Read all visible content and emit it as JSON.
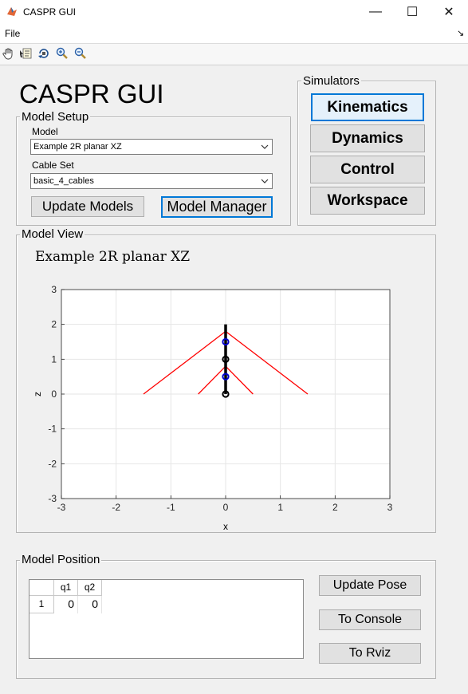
{
  "window": {
    "title": "CASPR GUI",
    "minimize": "—",
    "maximize": "☐",
    "close": "✕"
  },
  "menu": {
    "file": "File",
    "dock": "↘"
  },
  "toolbar": {
    "icons": [
      "pan-hand-icon",
      "data-cursor-icon",
      "rotate-3d-icon",
      "zoom-in-icon",
      "zoom-out-icon"
    ]
  },
  "app_title": "CASPR GUI",
  "model_setup": {
    "label": "Model Setup",
    "model_label": "Model",
    "model_value": "Example 2R planar XZ",
    "cable_label": "Cable Set",
    "cable_value": "basic_4_cables",
    "update_models": "Update Models",
    "model_manager": "Model Manager"
  },
  "simulators": {
    "label": "Simulators",
    "buttons": [
      "Kinematics",
      "Dynamics",
      "Control",
      "Workspace"
    ]
  },
  "model_view": {
    "label": "Model View",
    "plot_title": "Example 2R planar XZ"
  },
  "chart_data": {
    "type": "line",
    "title": "Example 2R planar XZ",
    "xlabel": "x",
    "ylabel": "z",
    "xlim": [
      -3,
      3
    ],
    "ylim": [
      -3,
      3
    ],
    "xticks": [
      "-3",
      "-2",
      "-1",
      "0",
      "1",
      "2",
      "3"
    ],
    "yticks": [
      "3",
      "2",
      "1",
      "0",
      "-1",
      "-2",
      "-3"
    ],
    "grid": true,
    "colors": {
      "cable": "#ff0000",
      "link": "#000000",
      "cog": "#0000cc",
      "joint": "#000000"
    },
    "cables": [
      {
        "from": [
          -1.5,
          0
        ],
        "to": [
          0,
          1.8
        ]
      },
      {
        "from": [
          1.5,
          0
        ],
        "to": [
          0,
          1.8
        ]
      },
      {
        "from": [
          -0.5,
          0
        ],
        "to": [
          0,
          0.8
        ]
      },
      {
        "from": [
          0.5,
          0
        ],
        "to": [
          0,
          0.8
        ]
      }
    ],
    "link": {
      "from": [
        0,
        0
      ],
      "to": [
        0,
        2
      ]
    },
    "joints": [
      [
        0,
        0
      ],
      [
        0,
        1
      ]
    ],
    "cogs": [
      [
        0,
        0.5
      ],
      [
        0,
        1.5
      ]
    ]
  },
  "model_position": {
    "label": "Model Position",
    "columns": [
      "q1",
      "q2"
    ],
    "rows": [
      {
        "index": "1",
        "values": [
          "0",
          "0"
        ]
      }
    ],
    "update_pose": "Update Pose",
    "to_console": "To Console",
    "to_rviz": "To  Rviz"
  }
}
